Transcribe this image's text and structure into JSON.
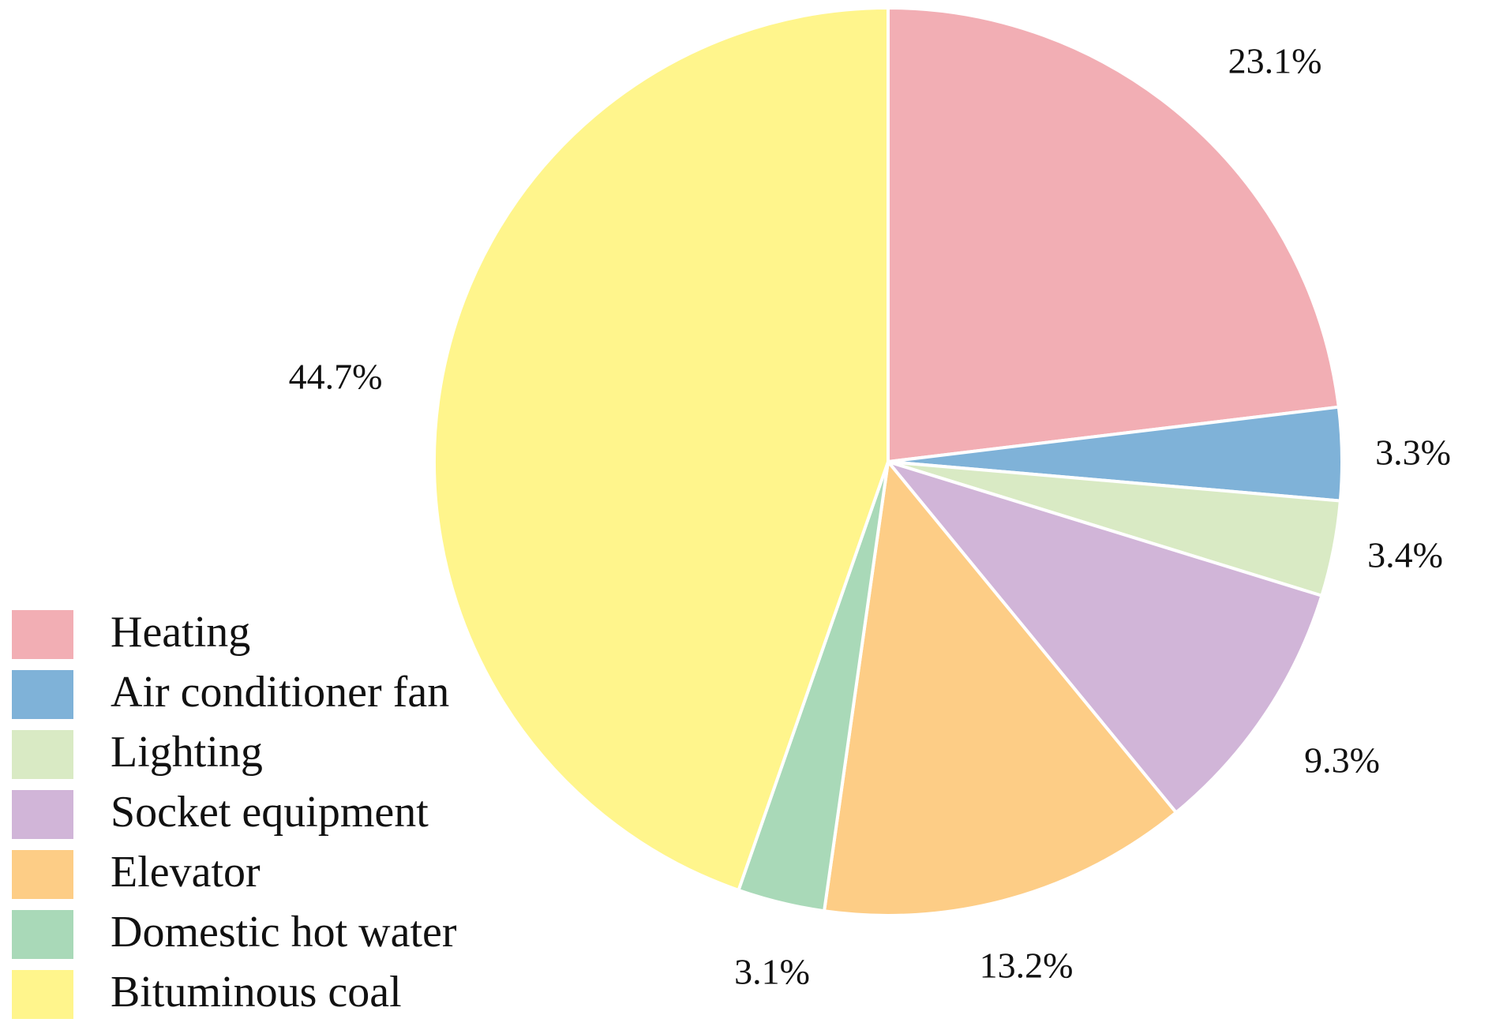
{
  "chart_data": {
    "type": "pie",
    "slices": [
      {
        "name": "Heating",
        "value": 23.1,
        "label": "23.1%",
        "color": "#F2AEB4"
      },
      {
        "name": "Air conditioner fan",
        "value": 3.3,
        "label": "3.3%",
        "color": "#7FB2D8"
      },
      {
        "name": "Lighting",
        "value": 3.4,
        "label": "3.4%",
        "color": "#D9EAC4"
      },
      {
        "name": "Socket equipment",
        "value": 9.3,
        "label": "9.3%",
        "color": "#D1B5D8"
      },
      {
        "name": "Elevator",
        "value": 13.2,
        "label": "13.2%",
        "color": "#FDCD86"
      },
      {
        "name": "Domestic hot water",
        "value": 3.1,
        "label": "3.1%",
        "color": "#A9D9B8"
      },
      {
        "name": "Bituminous coal",
        "value": 44.7,
        "label": "44.7%",
        "color": "#FFF58C"
      }
    ],
    "start_angle": "12 o'clock",
    "direction": "clockwise",
    "legend_position": "bottom-left"
  }
}
